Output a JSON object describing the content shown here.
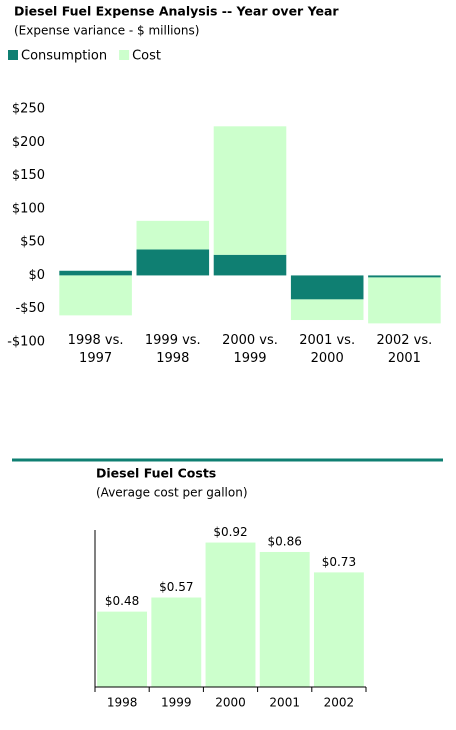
{
  "chart_data": [
    {
      "type": "stacked-bar",
      "title": "Diesel Fuel Expense Analysis -- Year over Year",
      "subtitle": "(Expense variance - $ millions)",
      "categories": [
        "1998 vs.\n1997",
        "1999 vs.\n1998",
        "2000 vs.\n1999",
        "2001 vs.\n2000",
        "2002 vs.\n2001"
      ],
      "series": [
        {
          "name": "Consumption",
          "color": "#0f7f72",
          "values": [
            7,
            39,
            31,
            -36,
            -3
          ]
        },
        {
          "name": "Cost",
          "color": "#ccffcc",
          "values": [
            -60,
            43,
            193,
            -31,
            -69
          ]
        }
      ],
      "ylim": [
        -100,
        250
      ],
      "yticks": [
        {
          "value": -100,
          "label": "-$100"
        },
        {
          "value": -50,
          "label": "-$50"
        },
        {
          "value": 0,
          "label": "$0"
        },
        {
          "value": 50,
          "label": "$50"
        },
        {
          "value": 100,
          "label": "$100"
        },
        {
          "value": 150,
          "label": "$150"
        },
        {
          "value": 200,
          "label": "$200"
        },
        {
          "value": 250,
          "label": "$250"
        }
      ],
      "legend": "top-left"
    },
    {
      "type": "bar",
      "title": "Diesel Fuel Costs",
      "subtitle": "(Average cost per gallon)",
      "categories": [
        "1998",
        "1999",
        "2000",
        "2001",
        "2002"
      ],
      "values": [
        0.48,
        0.57,
        0.92,
        0.86,
        0.73
      ],
      "value_labels": [
        "$0.48",
        "$0.57",
        "$0.92",
        "$0.86",
        "$0.73"
      ],
      "color": "#ccffcc",
      "ylim": [
        0,
        1
      ]
    }
  ]
}
